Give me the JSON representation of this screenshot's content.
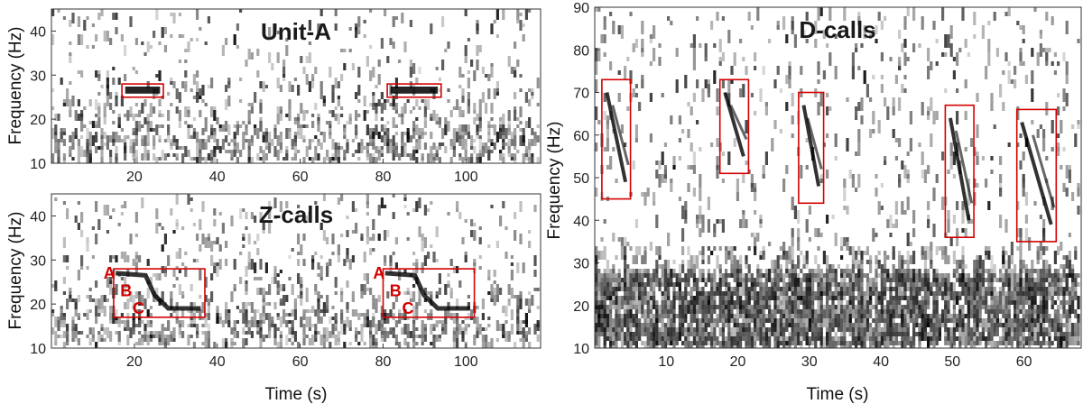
{
  "chart_data": [
    {
      "type": "heatmap",
      "title": "Unit-A",
      "xlabel": "",
      "ylabel": "Frequency (Hz)",
      "xlim": [
        0,
        118
      ],
      "ylim": [
        10,
        45
      ],
      "xticks": [
        20,
        40,
        60,
        80,
        100
      ],
      "yticks": [
        10,
        20,
        30,
        40
      ],
      "grid": false,
      "colormap": "grayscale (dark = high energy)",
      "detections": [
        {
          "x": [
            17,
            27
          ],
          "y": [
            25,
            28
          ]
        },
        {
          "x": [
            81,
            94
          ],
          "y": [
            25,
            28
          ]
        }
      ],
      "labels": []
    },
    {
      "type": "heatmap",
      "title": "Z-calls",
      "xlabel": "Time (s)",
      "ylabel": "Frequency (Hz)",
      "xlim": [
        0,
        118
      ],
      "ylim": [
        10,
        45
      ],
      "xticks": [
        20,
        40,
        60,
        80,
        100
      ],
      "yticks": [
        10,
        20,
        30,
        40
      ],
      "grid": false,
      "colormap": "grayscale (dark = high energy)",
      "detections": [
        {
          "x": [
            15,
            37
          ],
          "y": [
            17,
            28
          ]
        },
        {
          "x": [
            80,
            102
          ],
          "y": [
            17,
            28
          ]
        }
      ],
      "labels": [
        {
          "text": "A",
          "x": 14,
          "y": 27
        },
        {
          "text": "B",
          "x": 18,
          "y": 23
        },
        {
          "text": "C",
          "x": 21,
          "y": 19
        },
        {
          "text": "A",
          "x": 79,
          "y": 27
        },
        {
          "text": "B",
          "x": 83,
          "y": 23
        },
        {
          "text": "C",
          "x": 86,
          "y": 19
        }
      ]
    },
    {
      "type": "heatmap",
      "title": "D-calls",
      "xlabel": "Time (s)",
      "ylabel": "Frequency (Hz)",
      "xlim": [
        0,
        68
      ],
      "ylim": [
        10,
        90
      ],
      "xticks": [
        10,
        20,
        30,
        40,
        50,
        60
      ],
      "yticks": [
        10,
        20,
        30,
        40,
        50,
        60,
        70,
        80,
        90
      ],
      "grid": false,
      "colormap": "grayscale (dark = high energy)",
      "detections": [
        {
          "x": [
            1,
            5
          ],
          "y": [
            45,
            73
          ]
        },
        {
          "x": [
            17.5,
            21.5
          ],
          "y": [
            51,
            73
          ]
        },
        {
          "x": [
            28.5,
            32
          ],
          "y": [
            44,
            70
          ]
        },
        {
          "x": [
            49,
            53
          ],
          "y": [
            36,
            67
          ]
        },
        {
          "x": [
            59,
            64.5
          ],
          "y": [
            35,
            66
          ]
        }
      ],
      "labels": []
    }
  ],
  "colors": {
    "box": "#d40000",
    "callout": "#d40000",
    "frame": "#333333",
    "ink": "#000000"
  }
}
